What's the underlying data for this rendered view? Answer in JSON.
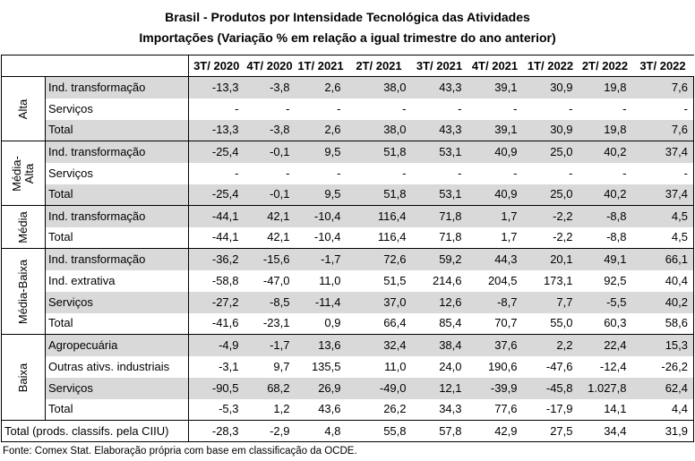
{
  "title": "Brasil - Produtos por Intensidade Tecnológica das Atividades",
  "subtitle": "Importações (Variação % em relação a igual trimestre do ano anterior)",
  "columns": [
    "3T/ 2020",
    "4T/ 2020",
    "1T/ 2021",
    "2T/ 2021",
    "3T/ 2021",
    "4T/ 2021",
    "1T/ 2022",
    "2T/ 2022",
    "3T/ 2022"
  ],
  "groups": [
    {
      "label": "Alta",
      "rows": [
        {
          "label": "Ind. transformação",
          "values": [
            "-13,3",
            "-3,8",
            "2,6",
            "38,0",
            "43,3",
            "39,1",
            "30,9",
            "19,8",
            "7,6"
          ]
        },
        {
          "label": "Serviços",
          "values": [
            "-",
            "-",
            "-",
            "-",
            "-",
            "-",
            "-",
            "-",
            "-"
          ]
        },
        {
          "label": "Total",
          "values": [
            "-13,3",
            "-3,8",
            "2,6",
            "38,0",
            "43,3",
            "39,1",
            "30,9",
            "19,8",
            "7,6"
          ]
        }
      ]
    },
    {
      "label": "Média-Alta",
      "label_line1": "Média-",
      "label_line2": "Alta",
      "rows": [
        {
          "label": "Ind. transformação",
          "values": [
            "-25,4",
            "-0,1",
            "9,5",
            "51,8",
            "53,1",
            "40,9",
            "25,0",
            "40,2",
            "37,4"
          ]
        },
        {
          "label": "Serviços",
          "values": [
            "-",
            "-",
            "-",
            "-",
            "-",
            "-",
            "-",
            "-",
            "-"
          ]
        },
        {
          "label": "Total",
          "values": [
            "-25,4",
            "-0,1",
            "9,5",
            "51,8",
            "53,1",
            "40,9",
            "25,0",
            "40,2",
            "37,4"
          ]
        }
      ]
    },
    {
      "label": "Média",
      "rows": [
        {
          "label": "Ind. transformação",
          "values": [
            "-44,1",
            "42,1",
            "-10,4",
            "116,4",
            "71,8",
            "1,7",
            "-2,2",
            "-8,8",
            "4,5"
          ]
        },
        {
          "label": "Total",
          "values": [
            "-44,1",
            "42,1",
            "-10,4",
            "116,4",
            "71,8",
            "1,7",
            "-2,2",
            "-8,8",
            "4,5"
          ]
        }
      ]
    },
    {
      "label": "Média-Baixa",
      "rows": [
        {
          "label": "Ind. transformação",
          "values": [
            "-36,2",
            "-15,6",
            "-1,7",
            "72,6",
            "59,2",
            "44,3",
            "20,1",
            "49,1",
            "66,1"
          ]
        },
        {
          "label": "Ind. extrativa",
          "values": [
            "-58,8",
            "-47,0",
            "11,0",
            "51,5",
            "214,6",
            "204,5",
            "173,1",
            "92,5",
            "40,4"
          ]
        },
        {
          "label": "Serviços",
          "values": [
            "-27,2",
            "-8,5",
            "-11,4",
            "37,0",
            "12,6",
            "-8,7",
            "7,7",
            "-5,5",
            "40,2"
          ]
        },
        {
          "label": "Total",
          "values": [
            "-41,6",
            "-23,1",
            "0,9",
            "66,4",
            "85,4",
            "70,7",
            "55,0",
            "60,3",
            "58,6"
          ]
        }
      ]
    },
    {
      "label": "Baixa",
      "rows": [
        {
          "label": "Agropecuária",
          "values": [
            "-4,9",
            "-1,7",
            "13,6",
            "32,4",
            "38,4",
            "37,6",
            "2,2",
            "22,4",
            "15,3"
          ]
        },
        {
          "label": "Outras ativs. industriais",
          "values": [
            "-3,1",
            "9,7",
            "135,5",
            "11,0",
            "24,0",
            "190,6",
            "-47,6",
            "-12,4",
            "-26,2"
          ]
        },
        {
          "label": "Serviços",
          "values": [
            "-90,5",
            "68,2",
            "26,9",
            "-49,0",
            "12,1",
            "-39,9",
            "-45,8",
            "1.027,8",
            "62,4"
          ]
        },
        {
          "label": "Total",
          "values": [
            "-5,3",
            "1,2",
            "43,6",
            "26,2",
            "34,3",
            "77,6",
            "-17,9",
            "14,1",
            "4,4"
          ]
        }
      ]
    }
  ],
  "total": {
    "label": "Total (prods. classifs. pela CIIU)",
    "values": [
      "-28,3",
      "-2,9",
      "4,8",
      "55,8",
      "57,8",
      "42,9",
      "27,5",
      "34,4",
      "31,9"
    ]
  },
  "source": "Fonte: Comex Stat. Elaboração própria com base em classificação da OCDE."
}
